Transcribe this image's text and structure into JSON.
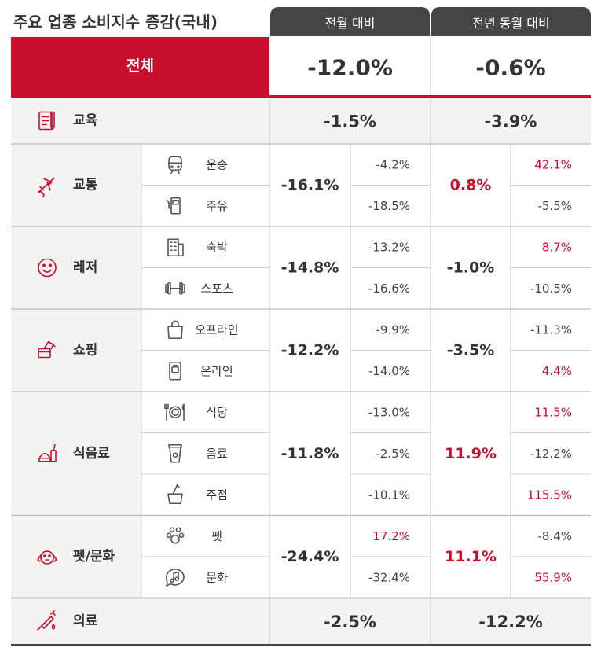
{
  "title": "주요 업종 소비지수 증감(국내)",
  "colors": {
    "red": "#c8102e",
    "dark": "#454545",
    "text": "#333333"
  },
  "chart_data": {
    "type": "table",
    "columns": [
      "전월 대비",
      "전년 동월 대비"
    ],
    "total": {
      "name": "전체",
      "mom": "-12.0%",
      "yoy": "-0.6%"
    },
    "categories": [
      {
        "name": "교육",
        "icon": "notebook-icon",
        "mom": "-1.5%",
        "yoy": "-3.9%",
        "yoy_highlight": false,
        "subs": []
      },
      {
        "name": "교통",
        "icon": "airplane-icon",
        "mom": "-16.1%",
        "yoy": "0.8%",
        "yoy_highlight": true,
        "subs": [
          {
            "name": "운송",
            "icon": "train-icon",
            "mom": "-4.2%",
            "mom_hl": false,
            "yoy": "42.1%",
            "yoy_hl": true
          },
          {
            "name": "주유",
            "icon": "fuel-pump-icon",
            "mom": "-18.5%",
            "mom_hl": false,
            "yoy": "-5.5%",
            "yoy_hl": false
          }
        ]
      },
      {
        "name": "레저",
        "icon": "smiley-icon",
        "mom": "-14.8%",
        "yoy": "-1.0%",
        "yoy_highlight": false,
        "subs": [
          {
            "name": "숙박",
            "icon": "building-icon",
            "mom": "-13.2%",
            "mom_hl": false,
            "yoy": "8.7%",
            "yoy_hl": true
          },
          {
            "name": "스포츠",
            "icon": "dumbbell-icon",
            "mom": "-16.6%",
            "mom_hl": false,
            "yoy": "-10.5%",
            "yoy_hl": false
          }
        ]
      },
      {
        "name": "쇼핑",
        "icon": "card-payment-icon",
        "mom": "-12.2%",
        "yoy": "-3.5%",
        "yoy_highlight": false,
        "subs": [
          {
            "name": "오프라인",
            "icon": "shopping-bag-icon",
            "mom": "-9.9%",
            "mom_hl": false,
            "yoy": "-11.3%",
            "yoy_hl": false
          },
          {
            "name": "온라인",
            "icon": "mobile-shopping-icon",
            "mom": "-14.0%",
            "mom_hl": false,
            "yoy": "4.4%",
            "yoy_hl": true
          }
        ]
      },
      {
        "name": "식음료",
        "icon": "fastfood-icon",
        "mom": "-11.8%",
        "yoy": "11.9%",
        "yoy_highlight": true,
        "subs": [
          {
            "name": "식당",
            "icon": "plate-cutlery-icon",
            "mom": "-13.0%",
            "mom_hl": false,
            "yoy": "11.5%",
            "yoy_hl": true
          },
          {
            "name": "음료",
            "icon": "coffee-cup-icon",
            "mom": "-2.5%",
            "mom_hl": false,
            "yoy": "-12.2%",
            "yoy_hl": false
          },
          {
            "name": "주점",
            "icon": "wine-bucket-icon",
            "mom": "-10.1%",
            "mom_hl": false,
            "yoy": "115.5%",
            "yoy_hl": true
          }
        ]
      },
      {
        "name": "펫/문화",
        "icon": "dog-icon",
        "mom": "-24.4%",
        "yoy": "11.1%",
        "yoy_highlight": true,
        "subs": [
          {
            "name": "펫",
            "icon": "paw-icon",
            "mom": "17.2%",
            "mom_hl": true,
            "yoy": "-8.4%",
            "yoy_hl": false
          },
          {
            "name": "문화",
            "icon": "music-bubble-icon",
            "mom": "-32.4%",
            "mom_hl": false,
            "yoy": "55.9%",
            "yoy_hl": true
          }
        ]
      },
      {
        "name": "의료",
        "icon": "syringe-icon",
        "mom": "-2.5%",
        "yoy": "-12.2%",
        "yoy_highlight": false,
        "subs": []
      }
    ]
  }
}
